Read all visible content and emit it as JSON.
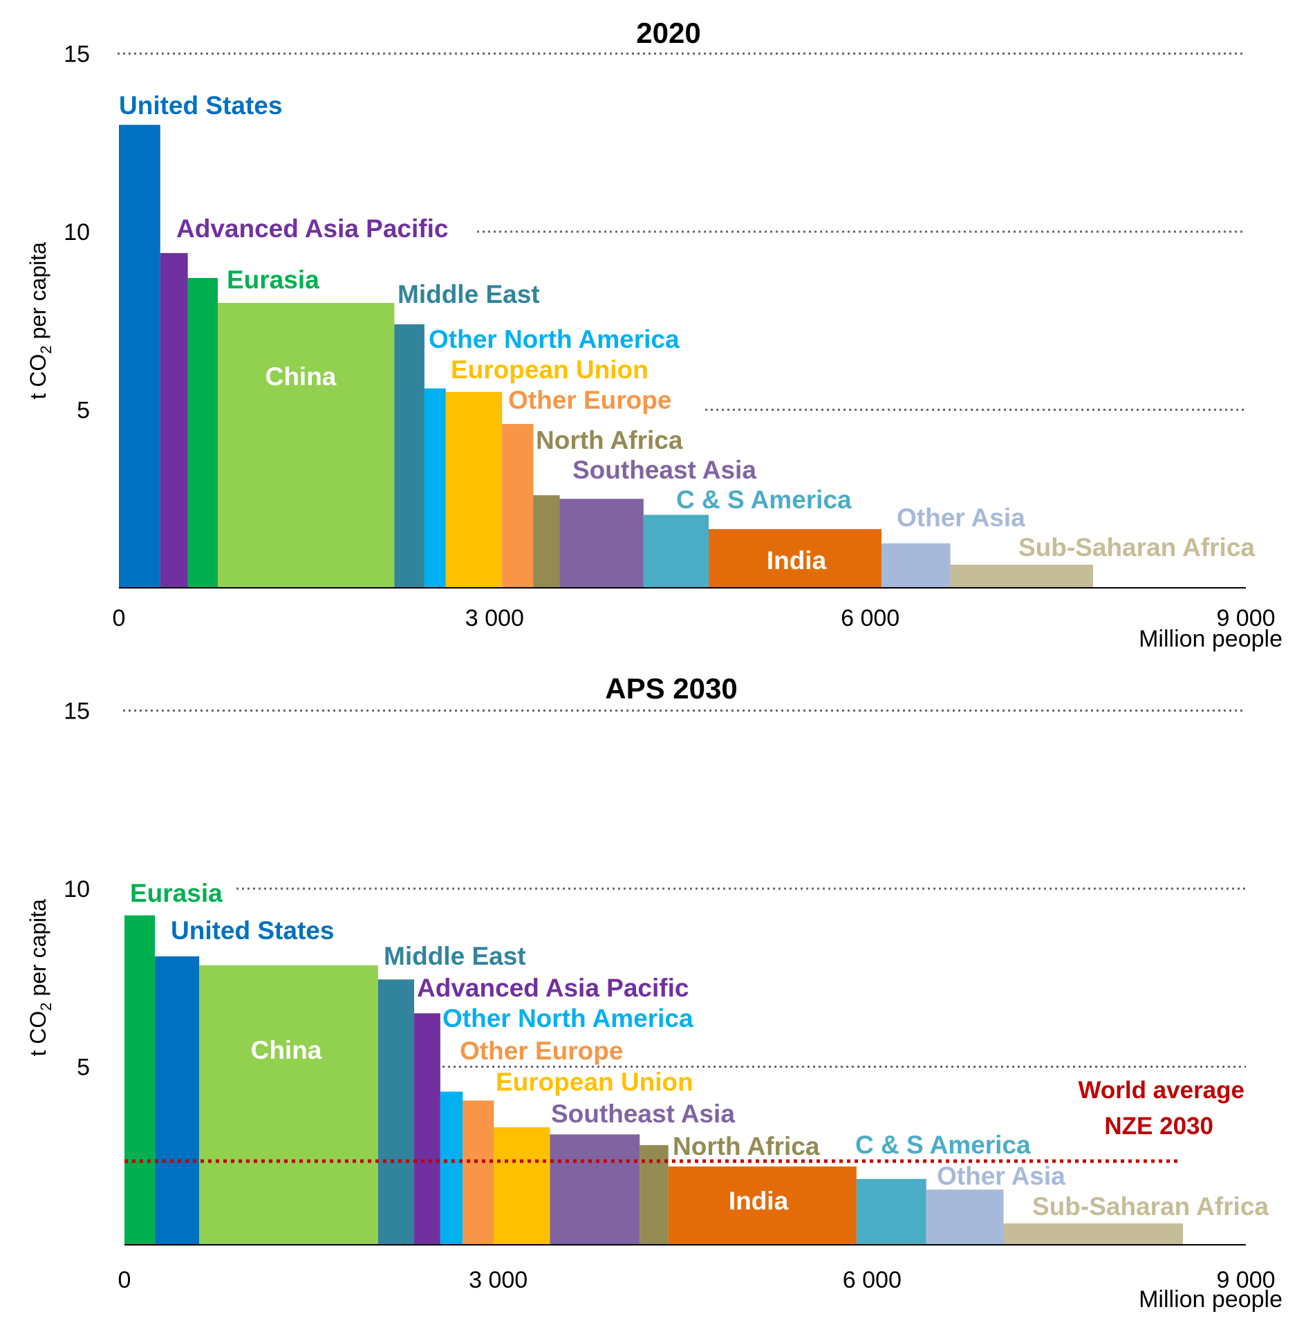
{
  "chart_data": [
    {
      "type": "bar",
      "title": "2020",
      "xlabel": "Million people",
      "ylabel": "t CO2 per capita",
      "xlim": [
        0,
        9000
      ],
      "ylim": [
        0,
        15
      ],
      "xticks": [
        "0",
        "3 000",
        "6 000",
        "9 000"
      ],
      "yticks": [
        "5",
        "10",
        "15"
      ],
      "series": [
        {
          "name": "United States",
          "population": 330,
          "value": 13.0,
          "color": "#0070c0"
        },
        {
          "name": "Advanced Asia Pacific",
          "population": 220,
          "value": 9.4,
          "color": "#7030a0"
        },
        {
          "name": "Eurasia",
          "population": 240,
          "value": 8.7,
          "color": "#00b050"
        },
        {
          "name": "China",
          "population": 1410,
          "value": 8.0,
          "color": "#92d050"
        },
        {
          "name": "Middle East",
          "population": 240,
          "value": 7.4,
          "color": "#31849b"
        },
        {
          "name": "Other North America",
          "population": 170,
          "value": 5.6,
          "color": "#00b0f0"
        },
        {
          "name": "European Union",
          "population": 450,
          "value": 5.5,
          "color": "#ffc000"
        },
        {
          "name": "Other Europe",
          "population": 250,
          "value": 4.6,
          "color": "#f79646"
        },
        {
          "name": "North Africa",
          "population": 210,
          "value": 2.6,
          "color": "#948a54"
        },
        {
          "name": "Southeast Asia",
          "population": 670,
          "value": 2.5,
          "color": "#8064a2"
        },
        {
          "name": "C & S America",
          "population": 520,
          "value": 2.05,
          "color": "#4bacc6"
        },
        {
          "name": "India",
          "population": 1380,
          "value": 1.65,
          "color": "#e36c09"
        },
        {
          "name": "Other Asia",
          "population": 550,
          "value": 1.25,
          "color": "#a6b9da"
        },
        {
          "name": "Sub-Saharan Africa",
          "population": 1140,
          "value": 0.65,
          "color": "#c4bd97"
        }
      ]
    },
    {
      "type": "bar",
      "title": "APS 2030",
      "xlabel": "Million people",
      "ylabel": "t CO2 per capita",
      "xlim": [
        0,
        9000
      ],
      "ylim": [
        0,
        15
      ],
      "xticks": [
        "0",
        "3 000",
        "6 000",
        "9 000"
      ],
      "yticks": [
        "5",
        "10",
        "15"
      ],
      "series": [
        {
          "name": "Eurasia",
          "population": 245,
          "value": 9.25,
          "color": "#00b050"
        },
        {
          "name": "United States",
          "population": 355,
          "value": 8.1,
          "color": "#0070c0"
        },
        {
          "name": "China",
          "population": 1435,
          "value": 7.85,
          "color": "#92d050"
        },
        {
          "name": "Middle East",
          "population": 290,
          "value": 7.45,
          "color": "#31849b"
        },
        {
          "name": "Advanced Asia Pacific",
          "population": 210,
          "value": 6.5,
          "color": "#7030a0"
        },
        {
          "name": "Other North America",
          "population": 180,
          "value": 4.3,
          "color": "#00b0f0"
        },
        {
          "name": "Other Europe",
          "population": 250,
          "value": 4.05,
          "color": "#f79646"
        },
        {
          "name": "European Union",
          "population": 450,
          "value": 3.3,
          "color": "#ffc000"
        },
        {
          "name": "Southeast Asia",
          "population": 720,
          "value": 3.1,
          "color": "#8064a2"
        },
        {
          "name": "North Africa",
          "population": 230,
          "value": 2.8,
          "color": "#948a54"
        },
        {
          "name": "India",
          "population": 1510,
          "value": 2.2,
          "color": "#e36c09"
        },
        {
          "name": "C & S America",
          "population": 560,
          "value": 1.85,
          "color": "#4bacc6"
        },
        {
          "name": "Other Asia",
          "population": 620,
          "value": 1.55,
          "color": "#a6b9da"
        },
        {
          "name": "Sub-Saharan Africa",
          "population": 1440,
          "value": 0.6,
          "color": "#c4bd97"
        }
      ],
      "reference_line": {
        "label": [
          "World average",
          "NZE 2030"
        ],
        "value": 2.35,
        "x_end": 8480,
        "color": "#c00000"
      }
    }
  ]
}
